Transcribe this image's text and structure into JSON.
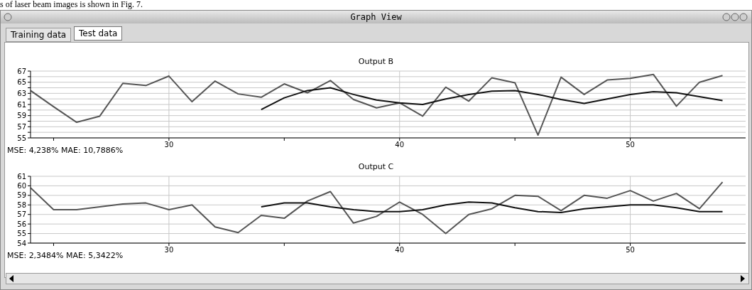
{
  "chart_data": [
    {
      "type": "line",
      "title": "Output B",
      "x": [
        24,
        25,
        26,
        27,
        28,
        29,
        30,
        31,
        32,
        33,
        34,
        35,
        36,
        37,
        38,
        39,
        40,
        41,
        42,
        43,
        44,
        45,
        46,
        47,
        48,
        49,
        50,
        51,
        52,
        53,
        54
      ],
      "series": [
        {
          "color": "#555555",
          "values": [
            63.5,
            60.6,
            57.8,
            58.9,
            64.8,
            64.4,
            66.1,
            61.5,
            65.2,
            62.9,
            62.3,
            64.7,
            63.1,
            65.3,
            61.9,
            60.4,
            61.3,
            58.9,
            64.1,
            61.6,
            65.8,
            64.9,
            55.5,
            65.9,
            62.8,
            65.4,
            65.7,
            66.4,
            60.7,
            65.0,
            66.2
          ]
        },
        {
          "color": "#111111",
          "values": [
            null,
            null,
            null,
            null,
            null,
            null,
            null,
            null,
            null,
            null,
            60.1,
            62.2,
            63.5,
            64.0,
            62.8,
            61.8,
            61.3,
            61.0,
            62.0,
            62.8,
            63.4,
            63.5,
            62.8,
            61.9,
            61.2,
            62.0,
            62.8,
            63.3,
            63.1,
            62.4,
            61.7
          ]
        }
      ],
      "xlim": [
        24,
        55
      ],
      "xticks": [
        {
          "value": 25,
          "label": null
        },
        30,
        {
          "value": 35,
          "label": null
        },
        40,
        {
          "value": 45,
          "label": null
        },
        50
      ],
      "ylim": [
        55,
        67
      ],
      "yticks": [
        55,
        {
          "value": 56,
          "label": null
        },
        57,
        {
          "value": 58,
          "label": null
        },
        59,
        {
          "value": 60,
          "label": null
        },
        61,
        {
          "value": 62,
          "label": null
        },
        63,
        {
          "value": 64,
          "label": null
        },
        65,
        {
          "value": 66,
          "label": null
        },
        67
      ],
      "grid": true,
      "legend": false,
      "marker": "none",
      "line_style": "solid",
      "annotations": [
        "s of laser beam images is shown in Fig. 7.",
        "Graph View",
        "Training data",
        "Test data",
        "MSE: 4,238% MAE: 10,7886%"
      ]
    },
    {
      "type": "line",
      "title": "Output C",
      "x": [
        24,
        25,
        26,
        27,
        28,
        29,
        30,
        31,
        32,
        33,
        34,
        35,
        36,
        37,
        38,
        39,
        40,
        41,
        42,
        43,
        44,
        45,
        46,
        47,
        48,
        49,
        50,
        51,
        52,
        53,
        54
      ],
      "series": [
        {
          "color": "#555555",
          "values": [
            59.8,
            57.5,
            57.5,
            57.8,
            58.1,
            58.2,
            57.5,
            58.0,
            55.7,
            55.1,
            56.9,
            56.6,
            58.4,
            59.4,
            56.1,
            56.8,
            58.3,
            57.0,
            55.0,
            57.0,
            57.6,
            59.0,
            58.9,
            57.4,
            59.0,
            58.7,
            59.5,
            58.4,
            59.2,
            57.6,
            60.4
          ]
        },
        {
          "color": "#111111",
          "values": [
            null,
            null,
            null,
            null,
            null,
            null,
            null,
            null,
            null,
            null,
            57.8,
            58.2,
            58.2,
            57.8,
            57.5,
            57.3,
            57.3,
            57.5,
            58.0,
            58.3,
            58.2,
            57.7,
            57.3,
            57.2,
            57.6,
            57.8,
            58.0,
            58.0,
            57.7,
            57.3,
            57.3
          ]
        }
      ],
      "xlim": [
        24,
        55
      ],
      "xticks": [
        {
          "value": 25,
          "label": null
        },
        30,
        {
          "value": 35,
          "label": null
        },
        40,
        {
          "value": 45,
          "label": null
        },
        50
      ],
      "ylim": [
        54,
        61
      ],
      "yticks": [
        54,
        55,
        56,
        57,
        58,
        59,
        60,
        61
      ],
      "grid": true,
      "legend": false,
      "marker": "none",
      "line_style": "solid",
      "annotations": [
        "MSE: 2,3484% MAE: 5,3422%"
      ]
    }
  ]
}
